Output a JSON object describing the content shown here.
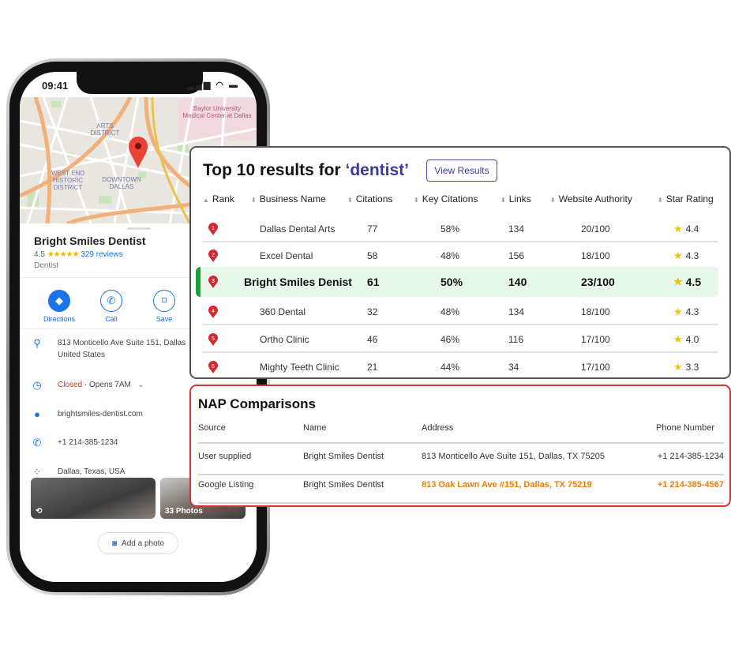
{
  "phone": {
    "status_time": "09:41",
    "map": {
      "labels": [
        "ARTS DISTRICT",
        "DOWNTOWN DALLAS",
        "WEST END HISTORIC DISTRICT",
        "Baylor University Medical Center at Dallas"
      ]
    },
    "business_name": "Bright Smiles Dentist",
    "rating": "4.5",
    "stars": "★★★★★",
    "reviews": "329 reviews",
    "category": "Dentist",
    "actions": [
      {
        "label": "Directions",
        "icon": "directions-icon"
      },
      {
        "label": "Call",
        "icon": "phone-icon"
      },
      {
        "label": "Save",
        "icon": "bookmark-icon"
      }
    ],
    "address_line1": "813 Monticello Ave Suite 151, Dallas",
    "address_line2": "United States",
    "hours_status": "Closed",
    "hours_next": " · Opens 7AM",
    "website": "brightsmiles-dentist.com",
    "phone": "+1 214-385-1234",
    "plus_code": "Dallas, Texas, USA",
    "photos_count": "33 Photos",
    "add_photo": "Add a photo"
  },
  "results": {
    "title_prefix": "Top 10 results for ",
    "keyword": "‘dentist’",
    "view_button": "View Results",
    "columns": [
      "Rank",
      "Business Name",
      "Citations",
      "Key Citations",
      "Links",
      "Website Authority",
      "Star Rating"
    ],
    "rows": [
      {
        "rank": "1",
        "name": "Dallas Dental Arts",
        "citations": "77",
        "key_citations": "58%",
        "links": "134",
        "authority": "20/100",
        "stars": "4.4"
      },
      {
        "rank": "2",
        "name": "Excel Dental",
        "citations": "58",
        "key_citations": "48%",
        "links": "156",
        "authority": "18/100",
        "stars": "4.3"
      },
      {
        "rank": "3",
        "name": "Bright Smiles Denist",
        "citations": "61",
        "key_citations": "50%",
        "links": "140",
        "authority": "23/100",
        "stars": "4.5",
        "highlighted": true
      },
      {
        "rank": "4",
        "name": "360 Dental",
        "citations": "32",
        "key_citations": "48%",
        "links": "134",
        "authority": "18/100",
        "stars": "4.3"
      },
      {
        "rank": "5",
        "name": "Ortho Clinic",
        "citations": "46",
        "key_citations": "46%",
        "links": "116",
        "authority": "17/100",
        "stars": "4.0"
      },
      {
        "rank": "6",
        "name": "Mighty Teeth Clinic",
        "citations": "21",
        "key_citations": "44%",
        "links": "34",
        "authority": "17/100",
        "stars": "3.3"
      }
    ],
    "highlight_color": "#1e9e3a"
  },
  "nap": {
    "title": "NAP Comparisons",
    "columns": [
      "Source",
      "Name",
      "Address",
      "Phone Number"
    ],
    "rows": [
      {
        "source": "User supplied",
        "name": "Bright Smiles Dentist",
        "address": "813 Monticello Ave Suite 151, Dallas, TX 75205",
        "phone": "+1 214-385-1234"
      },
      {
        "source": "Google Listing",
        "name": "Bright Smiles Dentist",
        "address": "813 Oak Lawn Ave #151, Dallas, TX 75219",
        "phone": "+1 214-385-4567",
        "mismatch": true
      }
    ],
    "mismatch_color": "#f07d00",
    "border_color": "#d9323a"
  }
}
